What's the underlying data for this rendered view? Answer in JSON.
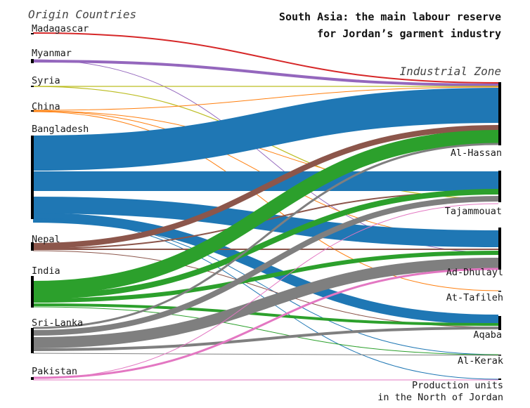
{
  "title_lines": [
    "South Asia: the main labour reserve",
    "for Jordan’s garment industry"
  ],
  "left_header": "Origin Countries",
  "right_header": "Industrial Zone",
  "origins": [
    {
      "name": "Madagascar",
      "color": "#d62728"
    },
    {
      "name": "Myanmar",
      "color": "#9467bd"
    },
    {
      "name": "Syria",
      "color": "#bcbd22"
    },
    {
      "name": "China",
      "color": "#ff7f0e"
    },
    {
      "name": "Bangladesh",
      "color": "#1f77b4"
    },
    {
      "name": "Nepal",
      "color": "#8c564b"
    },
    {
      "name": "India",
      "color": "#2ca02c"
    },
    {
      "name": "Sri-Lanka",
      "color": "#7f7f7f"
    },
    {
      "name": "Pakistan",
      "color": "#e377c2"
    }
  ],
  "zones": [
    {
      "name": "Al-Hassan"
    },
    {
      "name": "Tajammouat"
    },
    {
      "name": "Ad-Dhulayl"
    },
    {
      "name": "At-Tafileh"
    },
    {
      "name": "Aqaba"
    },
    {
      "name": "Al-Kerak"
    },
    {
      "name": "Production units\nin the North of Jordan"
    }
  ]
}
